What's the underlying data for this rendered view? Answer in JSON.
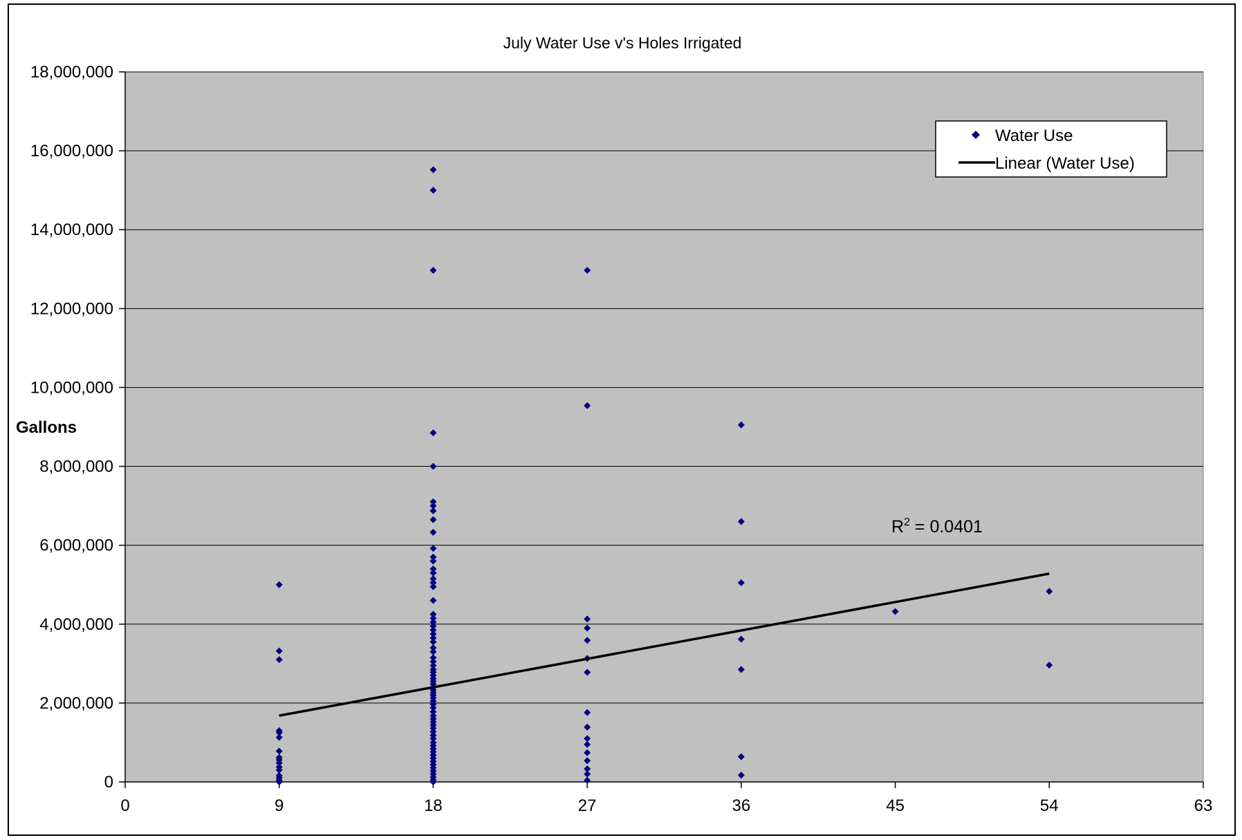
{
  "chart_data": {
    "type": "scatter",
    "title": "July Water Use v's Holes Irrigated",
    "xlabel": "",
    "ylabel": "Gallons",
    "xlim": [
      0,
      63
    ],
    "ylim": [
      0,
      18000000
    ],
    "x_ticks": [
      0,
      9,
      18,
      27,
      36,
      45,
      54,
      63
    ],
    "y_ticks": [
      0,
      2000000,
      4000000,
      6000000,
      8000000,
      10000000,
      12000000,
      14000000,
      16000000,
      18000000
    ],
    "x_tick_labels": [
      "0",
      "9",
      "18",
      "27",
      "36",
      "45",
      "54",
      "63"
    ],
    "y_tick_labels": [
      "0",
      "2,000,000",
      "4,000,000",
      "6,000,000",
      "8,000,000",
      "10,000,000",
      "12,000,000",
      "14,000,000",
      "16,000,000",
      "18,000,000"
    ],
    "grid": "horizontal",
    "plot_background": "#c0c0c0",
    "marker_color": "#000080",
    "trend_color": "#000000",
    "legend_position": "top-right",
    "legend": {
      "series_label": "Water Use",
      "trend_label": "Linear (Water Use)"
    },
    "annotation": {
      "prefix": "R",
      "superscript": "2",
      "suffix": " = 0.0401"
    },
    "trendline": {
      "type": "linear",
      "x": [
        9,
        54
      ],
      "y": [
        1680000,
        5280000
      ]
    },
    "series": [
      {
        "name": "Water Use",
        "points": [
          [
            9,
            5000000
          ],
          [
            9,
            3320000
          ],
          [
            9,
            3100000
          ],
          [
            9,
            1300000
          ],
          [
            9,
            1250000
          ],
          [
            9,
            1130000
          ],
          [
            9,
            780000
          ],
          [
            9,
            620000
          ],
          [
            9,
            560000
          ],
          [
            9,
            480000
          ],
          [
            9,
            380000
          ],
          [
            9,
            300000
          ],
          [
            9,
            160000
          ],
          [
            9,
            100000
          ],
          [
            9,
            40000
          ],
          [
            9,
            0
          ],
          [
            18,
            15520000
          ],
          [
            18,
            15000000
          ],
          [
            18,
            12970000
          ],
          [
            18,
            8850000
          ],
          [
            18,
            8000000
          ],
          [
            18,
            7100000
          ],
          [
            18,
            7000000
          ],
          [
            18,
            6870000
          ],
          [
            18,
            6650000
          ],
          [
            18,
            6330000
          ],
          [
            18,
            5920000
          ],
          [
            18,
            5700000
          ],
          [
            18,
            5600000
          ],
          [
            18,
            5400000
          ],
          [
            18,
            5300000
          ],
          [
            18,
            5150000
          ],
          [
            18,
            5050000
          ],
          [
            18,
            4950000
          ],
          [
            18,
            4600000
          ],
          [
            18,
            4250000
          ],
          [
            18,
            4150000
          ],
          [
            18,
            4050000
          ],
          [
            18,
            3950000
          ],
          [
            18,
            3850000
          ],
          [
            18,
            3750000
          ],
          [
            18,
            3650000
          ],
          [
            18,
            3550000
          ],
          [
            18,
            3400000
          ],
          [
            18,
            3300000
          ],
          [
            18,
            3150000
          ],
          [
            18,
            3050000
          ],
          [
            18,
            2950000
          ],
          [
            18,
            2850000
          ],
          [
            18,
            2780000
          ],
          [
            18,
            2700000
          ],
          [
            18,
            2620000
          ],
          [
            18,
            2550000
          ],
          [
            18,
            2480000
          ],
          [
            18,
            2400000
          ],
          [
            18,
            2330000
          ],
          [
            18,
            2260000
          ],
          [
            18,
            2200000
          ],
          [
            18,
            2130000
          ],
          [
            18,
            2050000
          ],
          [
            18,
            1970000
          ],
          [
            18,
            1880000
          ],
          [
            18,
            1780000
          ],
          [
            18,
            1680000
          ],
          [
            18,
            1600000
          ],
          [
            18,
            1520000
          ],
          [
            18,
            1440000
          ],
          [
            18,
            1360000
          ],
          [
            18,
            1270000
          ],
          [
            18,
            1180000
          ],
          [
            18,
            1100000
          ],
          [
            18,
            1000000
          ],
          [
            18,
            920000
          ],
          [
            18,
            840000
          ],
          [
            18,
            760000
          ],
          [
            18,
            680000
          ],
          [
            18,
            600000
          ],
          [
            18,
            520000
          ],
          [
            18,
            440000
          ],
          [
            18,
            360000
          ],
          [
            18,
            280000
          ],
          [
            18,
            200000
          ],
          [
            18,
            120000
          ],
          [
            18,
            50000
          ],
          [
            18,
            0
          ],
          [
            27,
            12970000
          ],
          [
            27,
            9540000
          ],
          [
            27,
            4130000
          ],
          [
            27,
            3900000
          ],
          [
            27,
            3590000
          ],
          [
            27,
            3130000
          ],
          [
            27,
            2780000
          ],
          [
            27,
            1760000
          ],
          [
            27,
            1390000
          ],
          [
            27,
            1100000
          ],
          [
            27,
            950000
          ],
          [
            27,
            740000
          ],
          [
            27,
            540000
          ],
          [
            27,
            330000
          ],
          [
            27,
            200000
          ],
          [
            27,
            40000
          ],
          [
            36,
            9050000
          ],
          [
            36,
            6600000
          ],
          [
            36,
            5050000
          ],
          [
            36,
            3620000
          ],
          [
            36,
            2850000
          ],
          [
            36,
            640000
          ],
          [
            36,
            170000
          ],
          [
            45,
            4320000
          ],
          [
            54,
            4830000
          ],
          [
            54,
            2960000
          ]
        ]
      }
    ]
  }
}
